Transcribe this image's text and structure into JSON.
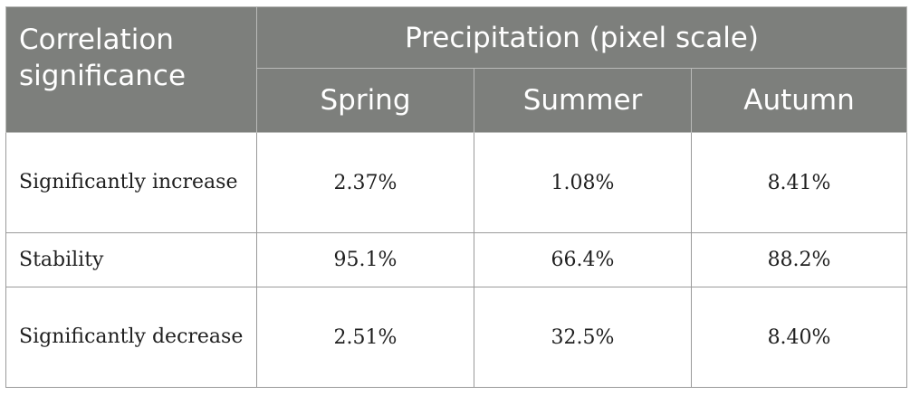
{
  "table": {
    "corner_header": "Correlation significance",
    "group_header": "Precipitation (pixel scale)",
    "columns": [
      "Spring",
      "Summer",
      "Autumn"
    ],
    "rows": [
      {
        "label": "Significantly increase",
        "values": [
          "2.37%",
          "1.08%",
          "8.41%"
        ]
      },
      {
        "label": "Stability",
        "values": [
          "95.1%",
          "66.4%",
          "88.2%"
        ]
      },
      {
        "label": "Significantly decrease",
        "values": [
          "2.51%",
          "32.5%",
          "8.40%"
        ]
      }
    ]
  },
  "colors": {
    "header_background": "#7d7f7c",
    "header_text": "#ffffff",
    "border": "#9a9a9a"
  }
}
